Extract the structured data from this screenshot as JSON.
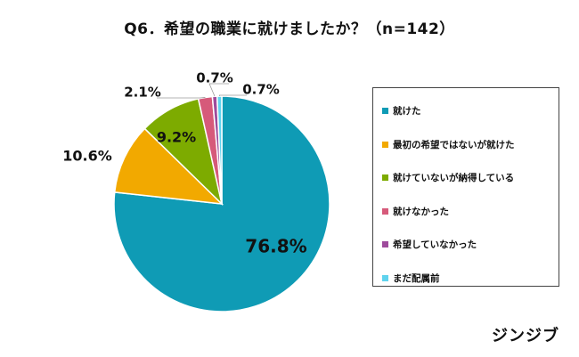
{
  "chart_data": {
    "type": "pie",
    "title": "Q6．希望の職業に就けましたか？（n=142）",
    "slices": [
      {
        "label": "就けた",
        "value": 76.8,
        "value_label": "76.8%",
        "color": "#0F9BB5"
      },
      {
        "label": "最初の希望ではないが就けた",
        "value": 10.6,
        "value_label": "10.6%",
        "color": "#F2A900"
      },
      {
        "label": "就けていないが納得している",
        "value": 9.2,
        "value_label": "9.2%",
        "color": "#7DAB00"
      },
      {
        "label": "就けなかった",
        "value": 2.1,
        "value_label": "2.1%",
        "color": "#D65A7A"
      },
      {
        "label": "希望していなかった",
        "value": 0.7,
        "value_label": "0.7%",
        "color": "#9E4B9C"
      },
      {
        "label": "まだ配属前",
        "value": 0.7,
        "value_label": "0.7%",
        "color": "#5FD3EE"
      }
    ],
    "legend_position": "right"
  },
  "branding": {
    "logo_text": "ジンジブ"
  }
}
